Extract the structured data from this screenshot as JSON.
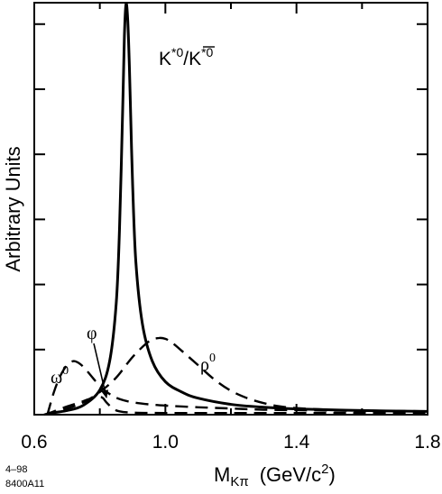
{
  "chart_data": {
    "type": "line",
    "title": "",
    "xlabel": {
      "main": "M",
      "sub": "Kπ",
      "units_pre": "(GeV/c",
      "units_sup": "2",
      "units_post": ")"
    },
    "ylabel": "Arbitrary Units",
    "xlim": [
      0.6,
      1.8
    ],
    "ylim": [
      0,
      1.0
    ],
    "x_ticks": [
      0.6,
      1.0,
      1.4,
      1.8
    ],
    "x_tick_labels": [
      "0.6",
      "1.0",
      "1.4",
      "1.8"
    ],
    "x_minor_ticks": [
      0.8,
      1.2,
      1.6
    ],
    "y_ticks": [
      0.158,
      0.316,
      0.474,
      0.632,
      0.79,
      0.948
    ],
    "series": [
      {
        "style": "solid",
        "x": [
          0.64,
          0.7,
          0.75,
          0.8,
          0.83,
          0.85,
          0.86,
          0.87,
          0.875,
          0.88,
          0.885,
          0.89,
          0.895,
          0.9,
          0.91,
          0.93,
          0.96,
          1.0,
          1.05,
          1.1,
          1.2,
          1.3,
          1.4,
          1.6,
          1.8
        ],
        "y": [
          0.003,
          0.01,
          0.023,
          0.06,
          0.13,
          0.27,
          0.45,
          0.75,
          0.92,
          0.997,
          0.96,
          0.85,
          0.7,
          0.56,
          0.37,
          0.22,
          0.13,
          0.08,
          0.055,
          0.04,
          0.025,
          0.018,
          0.014,
          0.01,
          0.008
        ]
      },
      {
        "style": "dashed",
        "x": [
          0.64,
          0.66,
          0.68,
          0.7,
          0.72,
          0.74,
          0.76,
          0.78,
          0.8,
          0.83,
          0.86,
          0.9,
          0.95,
          1.0,
          1.1,
          1.2,
          1.3,
          1.4,
          1.5,
          1.6,
          1.7,
          1.8
        ],
        "y": [
          0.0,
          0.055,
          0.095,
          0.12,
          0.13,
          0.123,
          0.107,
          0.088,
          0.07,
          0.05,
          0.038,
          0.03,
          0.025,
          0.022,
          0.018,
          0.015,
          0.012,
          0.011,
          0.01,
          0.009,
          0.009,
          0.008
        ]
      },
      {
        "style": "dashed",
        "x": [
          0.63,
          0.66,
          0.7,
          0.74,
          0.76,
          0.78,
          0.8,
          0.81,
          0.82,
          0.84,
          0.86,
          0.9,
          1.0,
          1.2,
          1.4,
          1.6,
          1.8
        ],
        "y": [
          0.0,
          0.008,
          0.02,
          0.03,
          0.036,
          0.041,
          0.043,
          0.04,
          0.03,
          0.015,
          0.008,
          0.005,
          0.004,
          0.004,
          0.004,
          0.004,
          0.004
        ]
      },
      {
        "style": "dashed",
        "x": [
          0.63,
          0.7,
          0.75,
          0.8,
          0.85,
          0.9,
          0.95,
          0.98,
          1.0,
          1.02,
          1.05,
          1.1,
          1.15,
          1.2,
          1.25,
          1.3,
          1.35,
          1.4,
          1.5,
          1.6,
          1.8
        ],
        "y": [
          0.0,
          0.015,
          0.03,
          0.055,
          0.09,
          0.14,
          0.178,
          0.186,
          0.184,
          0.175,
          0.155,
          0.12,
          0.085,
          0.058,
          0.04,
          0.028,
          0.02,
          0.016,
          0.012,
          0.01,
          0.008
        ]
      }
    ],
    "annotations": [
      {
        "text": "K",
        "sup1": "*0",
        "sep": "/",
        "bar_text": "K",
        "sup2": "*0"
      },
      {
        "text": "ρ",
        "sup": "0"
      },
      {
        "text": "ω",
        "sup": "0"
      },
      {
        "text": "φ"
      }
    ],
    "grid": false,
    "legend": "none"
  },
  "corner_note": {
    "line1": "4–98",
    "line2": "8400A11"
  }
}
